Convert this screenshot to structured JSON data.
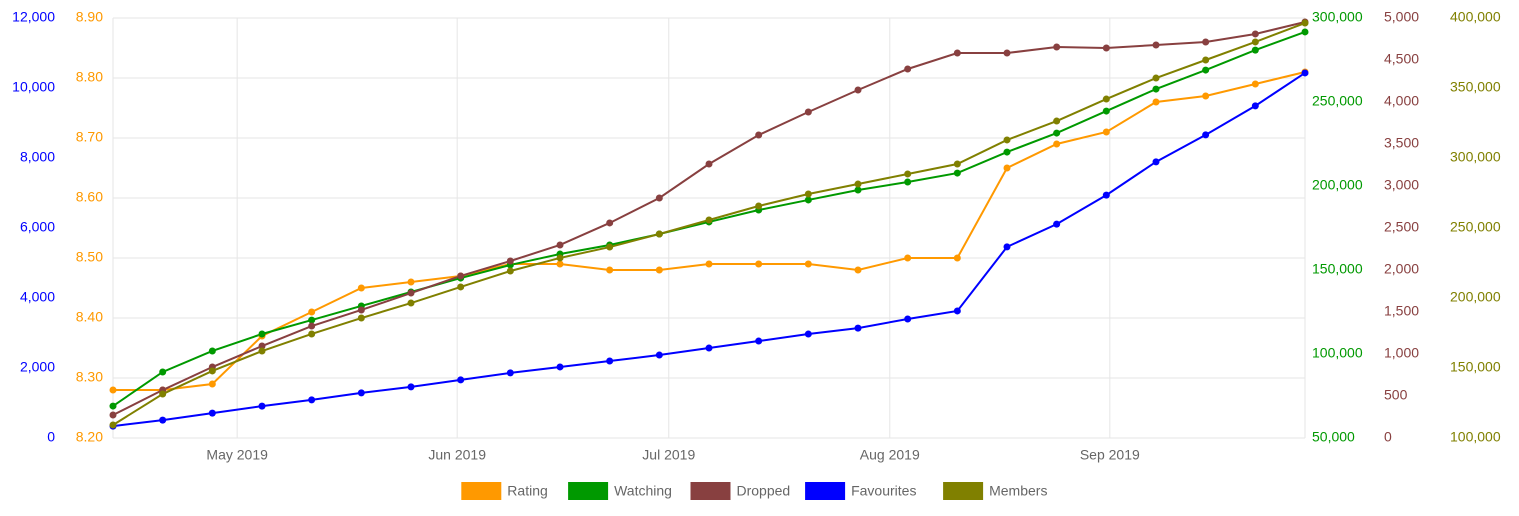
{
  "chart_data": {
    "type": "line",
    "categories": [
      null,
      null,
      null,
      null,
      null,
      null,
      null,
      null,
      null,
      null,
      null,
      null,
      null,
      null,
      null,
      null,
      null,
      null,
      null,
      null,
      null,
      null,
      null,
      null,
      null
    ],
    "xticks": [
      {
        "value": 2.5,
        "label": "May 2019"
      },
      {
        "value": 6.93,
        "label": "Jun 2019"
      },
      {
        "value": 11.19,
        "label": "Jul 2019"
      },
      {
        "value": 15.64,
        "label": "Aug 2019"
      },
      {
        "value": 20.07,
        "label": "Sep 2019"
      }
    ],
    "grid": true,
    "series": [
      {
        "name": "Rating",
        "color": "#ff9900",
        "values": [
          8.28,
          8.28,
          8.29,
          8.37,
          8.41,
          8.45,
          8.46,
          8.47,
          8.49,
          8.49,
          8.48,
          8.48,
          8.49,
          8.49,
          8.49,
          8.48,
          8.5,
          8.5,
          8.65,
          8.69,
          8.71,
          8.76,
          8.77,
          8.79,
          8.81
        ],
        "ylim": [
          8.2,
          8.9
        ],
        "yticks": [
          {
            "value": 8.2,
            "label": "8.20"
          },
          {
            "value": 8.3,
            "label": "8.30"
          },
          {
            "value": 8.4,
            "label": "8.40"
          },
          {
            "value": 8.5,
            "label": "8.50"
          },
          {
            "value": 8.6,
            "label": "8.60"
          },
          {
            "value": 8.7,
            "label": "8.70"
          },
          {
            "value": 8.8,
            "label": "8.80"
          },
          {
            "value": 8.9,
            "label": "8.90"
          }
        ]
      },
      {
        "name": "Watching",
        "color": "#009900",
        "values": [
          69000,
          89300,
          101800,
          111900,
          120200,
          128600,
          136900,
          145200,
          153000,
          159500,
          164900,
          171400,
          178600,
          185700,
          191700,
          197600,
          202400,
          207700,
          220200,
          231500,
          244600,
          257700,
          269000,
          280900,
          291700
        ],
        "ylim": [
          50000,
          300000
        ],
        "yticks": [
          {
            "value": 50000,
            "label": "50,000"
          },
          {
            "value": 100000,
            "label": "100,000"
          },
          {
            "value": 150000,
            "label": "150,000"
          },
          {
            "value": 200000,
            "label": "200,000"
          },
          {
            "value": 250000,
            "label": "250,000"
          },
          {
            "value": 300000,
            "label": "300,000"
          }
        ]
      },
      {
        "name": "Dropped",
        "color": "#884040",
        "values": [
          274,
          571,
          845,
          1095,
          1333,
          1524,
          1726,
          1929,
          2107,
          2298,
          2560,
          2857,
          3262,
          3607,
          3881,
          4143,
          4393,
          4583,
          4583,
          4655,
          4643,
          4679,
          4714,
          4810,
          4952
        ],
        "ylim": [
          0,
          5000
        ],
        "yticks": [
          0,
          500,
          {
            "value": 1000,
            "label": "1,000"
          },
          {
            "value": 1500,
            "label": "1,500"
          },
          {
            "value": 2000,
            "label": "2,000"
          },
          {
            "value": 2500,
            "label": "2,500"
          },
          {
            "value": 3000,
            "label": "3,000"
          },
          {
            "value": 3500,
            "label": "3,500"
          },
          {
            "value": 4000,
            "label": "4,000"
          },
          {
            "value": 4500,
            "label": "4,500"
          },
          {
            "value": 5000,
            "label": "5,000"
          }
        ]
      },
      {
        "name": "Favourites",
        "color": "#0000ff",
        "values": [
          340,
          510,
          710,
          910,
          1090,
          1290,
          1460,
          1660,
          1860,
          2030,
          2200,
          2370,
          2570,
          2770,
          2970,
          3140,
          3400,
          3630,
          5460,
          6110,
          6940,
          7890,
          8660,
          9490,
          10430
        ],
        "ylim": [
          0,
          12000
        ],
        "yticks": [
          0,
          {
            "value": 2000,
            "label": "2,000"
          },
          {
            "value": 4000,
            "label": "4,000"
          },
          {
            "value": 6000,
            "label": "6,000"
          },
          {
            "value": 8000,
            "label": "8,000"
          },
          {
            "value": 10000,
            "label": "10,000"
          },
          {
            "value": 12000,
            "label": "12,000"
          }
        ]
      },
      {
        "name": "Members",
        "color": "#808000",
        "values": [
          109300,
          131400,
          147900,
          162100,
          174300,
          185700,
          196400,
          207900,
          219300,
          228600,
          236400,
          245700,
          255700,
          265700,
          274300,
          281400,
          288600,
          295700,
          312900,
          326400,
          342100,
          357100,
          370000,
          382900,
          396400
        ],
        "ylim": [
          100000,
          400000
        ],
        "yticks": [
          {
            "value": 100000,
            "label": "100,000"
          },
          {
            "value": 150000,
            "label": "150,000"
          },
          {
            "value": 200000,
            "label": "200,000"
          },
          {
            "value": 250000,
            "label": "250,000"
          },
          {
            "value": 300000,
            "label": "300,000"
          },
          {
            "value": 350000,
            "label": "350,000"
          },
          {
            "value": 400000,
            "label": "400,000"
          }
        ]
      }
    ]
  }
}
